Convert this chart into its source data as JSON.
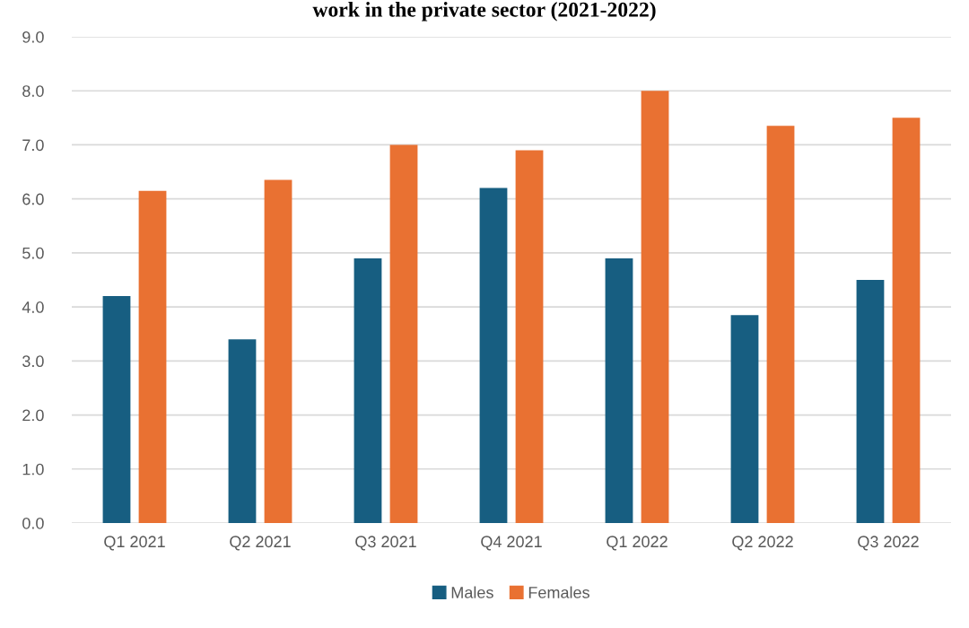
{
  "chart_data": {
    "type": "bar",
    "title": "work in the private sector (2021-2022)",
    "categories": [
      "Q1 2021",
      "Q2 2021",
      "Q3 2021",
      "Q4 2021",
      "Q1 2022",
      "Q2 2022",
      "Q3 2022"
    ],
    "series": [
      {
        "name": "Males",
        "color": "#175e81",
        "values": [
          4.2,
          3.4,
          4.9,
          6.2,
          4.9,
          3.85,
          4.5
        ]
      },
      {
        "name": "Females",
        "color": "#e97132",
        "values": [
          6.15,
          6.35,
          7.0,
          6.9,
          8.0,
          7.35,
          7.5
        ]
      }
    ],
    "ylim": [
      0,
      9
    ],
    "yticks": [
      {
        "value": 0,
        "label": "0.0"
      },
      {
        "value": 1,
        "label": "1.0"
      },
      {
        "value": 2,
        "label": "2.0"
      },
      {
        "value": 3,
        "label": "3.0"
      },
      {
        "value": 4,
        "label": "4.0"
      },
      {
        "value": 5,
        "label": "5.0"
      },
      {
        "value": 6,
        "label": "6.0"
      },
      {
        "value": 7,
        "label": "7.0"
      },
      {
        "value": 8,
        "label": "8.0"
      },
      {
        "value": 9,
        "label": "9.0"
      }
    ],
    "grid": "y",
    "legend": "bottom"
  }
}
